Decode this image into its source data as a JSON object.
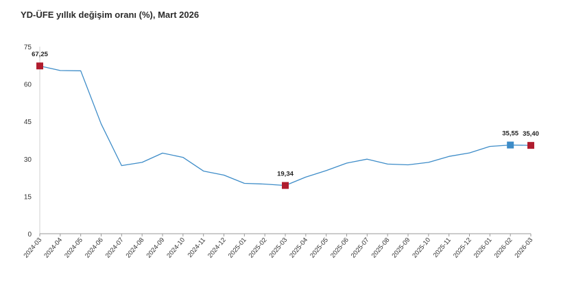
{
  "chart_data": {
    "type": "line",
    "title": "YD-ÜFE yıllık değişim oranı (%), Mart 2026",
    "xlabel": "",
    "ylabel": "",
    "ylim": [
      0,
      75
    ],
    "yticks": [
      "0",
      "15",
      "30",
      "45",
      "60",
      "75"
    ],
    "grid": false,
    "categories": [
      "2024-03",
      "2024-04",
      "2024-05",
      "2024-06",
      "2024-07",
      "2024-08",
      "2024-09",
      "2024-10",
      "2024-11",
      "2024-12",
      "2025-01",
      "2025-02",
      "2025-03",
      "2025-04",
      "2025-05",
      "2025-06",
      "2025-07",
      "2025-08",
      "2025-09",
      "2025-10",
      "2025-11",
      "2025-12",
      "2026-01",
      "2026-02",
      "2026-03"
    ],
    "series": [
      {
        "name": "YD-ÜFE yıllık değişim oranı (%)",
        "color": "#3d8cc8",
        "values": [
          67.25,
          65.4,
          65.3,
          44.0,
          27.3,
          28.6,
          32.3,
          30.6,
          25.1,
          23.5,
          20.2,
          19.9,
          19.34,
          22.7,
          25.3,
          28.3,
          29.9,
          27.9,
          27.6,
          28.6,
          31.0,
          32.4,
          35.0,
          35.55,
          35.4
        ]
      }
    ],
    "markers": [
      {
        "index": 0,
        "label": "67,25",
        "color": "#b01c2e"
      },
      {
        "index": 12,
        "label": "19,34",
        "color": "#b01c2e"
      },
      {
        "index": 23,
        "label": "35,55",
        "color": "#3d8cc8"
      },
      {
        "index": 24,
        "label": "35,40",
        "color": "#b01c2e"
      }
    ]
  }
}
